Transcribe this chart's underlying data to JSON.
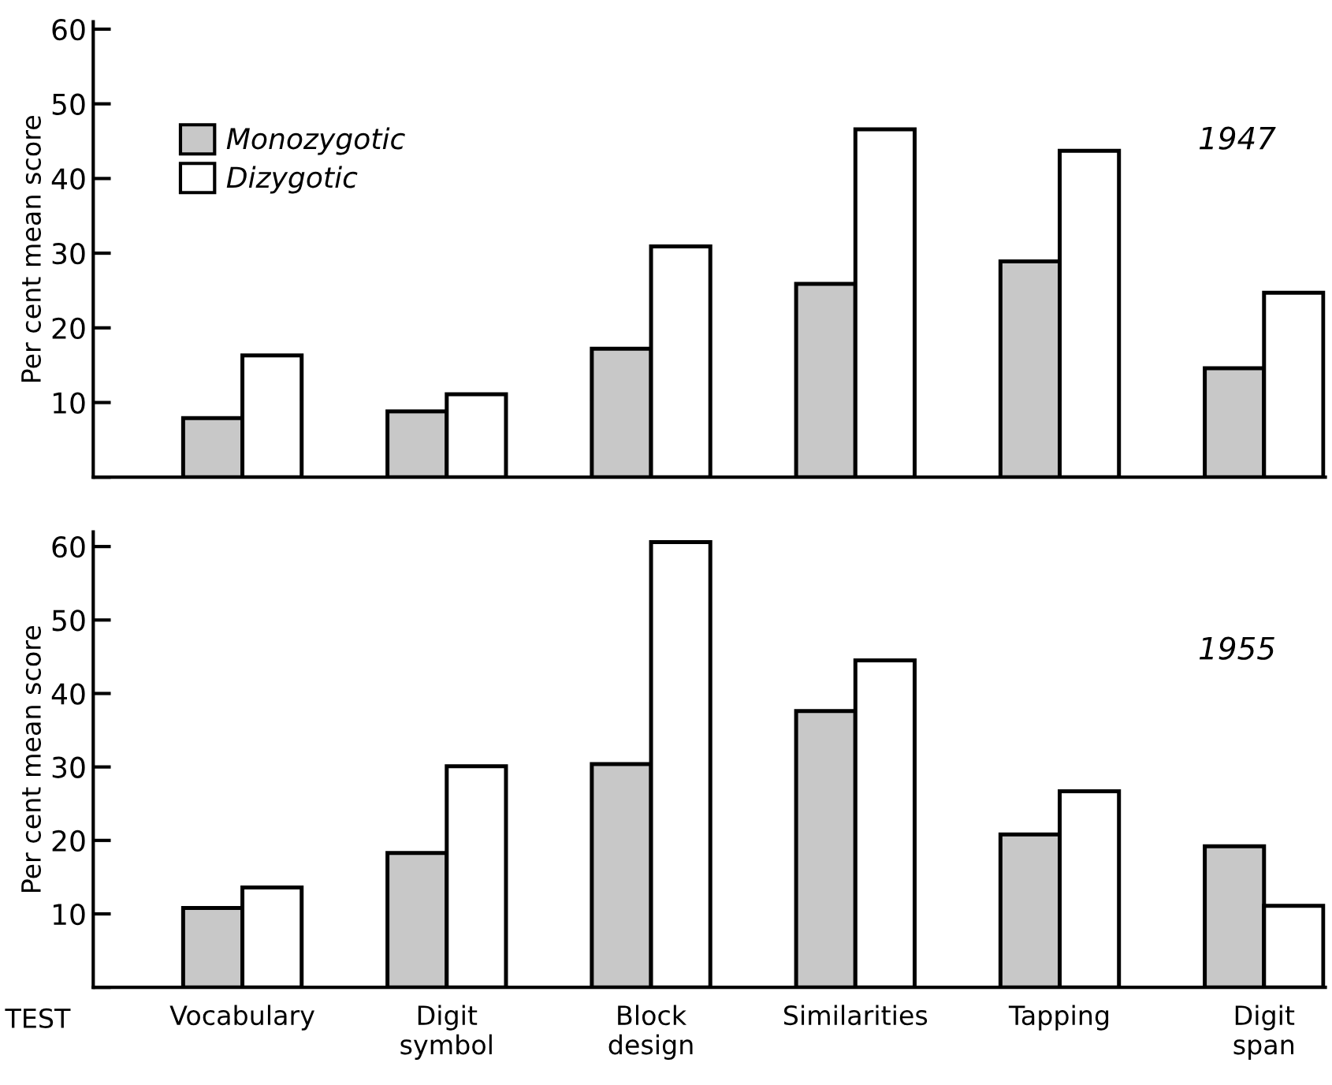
{
  "chart_data": [
    {
      "type": "bar",
      "ylabel": "Per cent mean score",
      "categories": [
        null,
        null,
        null,
        null,
        null,
        null
      ],
      "series": [
        {
          "name": "Monozygotic",
          "color": "#c8c8c8",
          "values": [
            7.9,
            8.8,
            17.2,
            25.9,
            28.9,
            14.6
          ]
        },
        {
          "name": "Dizygotic",
          "color": "#ffffff",
          "values": [
            16.3,
            11.1,
            30.9,
            46.6,
            43.7,
            24.7
          ]
        }
      ],
      "ylim": [
        0,
        61
      ],
      "yticks": [
        {
          "value": 0,
          "label": null
        },
        10,
        20,
        30,
        40,
        50,
        60
      ],
      "legend": "top left",
      "grid": false,
      "annotations": [
        "1947"
      ]
    },
    {
      "type": "bar",
      "ylabel": "Per cent mean score",
      "xlabel": "TEST",
      "categories": [
        "Vocabulary",
        "Digit\nsymbol",
        "Block\ndesign",
        "Similarities",
        "Tapping",
        "Digit\nspan"
      ],
      "series": [
        {
          "color": "#c8c8c8",
          "values": [
            10.8,
            18.3,
            30.4,
            37.6,
            20.8,
            19.2
          ]
        },
        {
          "color": "#ffffff",
          "values": [
            13.6,
            30.1,
            60.6,
            44.5,
            26.7,
            11.1
          ]
        }
      ],
      "ylim": [
        0,
        62
      ],
      "yticks": [
        {
          "value": 0,
          "label": null
        },
        10,
        20,
        30,
        40,
        50,
        60
      ],
      "grid": false,
      "annotations": [
        "1955"
      ]
    }
  ]
}
